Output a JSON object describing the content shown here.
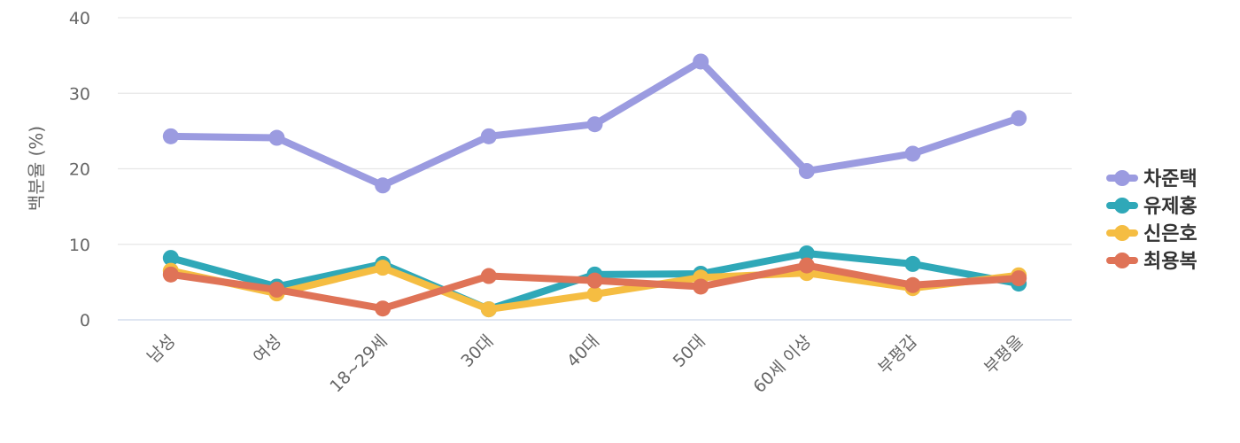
{
  "chart_data": {
    "type": "line",
    "categories": [
      "남성",
      "여성",
      "18~29세",
      "30대",
      "40대",
      "50대",
      "60세 이상",
      "부평갑",
      "부평을"
    ],
    "series": [
      {
        "name": "차준택",
        "color": "#9b9be0",
        "values": [
          24.3,
          24.1,
          17.8,
          24.3,
          25.9,
          34.2,
          19.7,
          22.0,
          26.7
        ]
      },
      {
        "name": "유제홍",
        "color": "#2fa8b8",
        "values": [
          8.2,
          4.4,
          7.4,
          1.4,
          6.0,
          6.1,
          8.8,
          7.4,
          4.8
        ]
      },
      {
        "name": "신은호",
        "color": "#f5bd42",
        "values": [
          6.5,
          3.5,
          6.9,
          1.4,
          3.4,
          5.6,
          6.2,
          4.2,
          5.9
        ]
      },
      {
        "name": "최용복",
        "color": "#df7357",
        "values": [
          6.0,
          4.0,
          1.5,
          5.8,
          5.2,
          4.4,
          7.2,
          4.6,
          5.5
        ]
      }
    ],
    "yticks": [
      "0",
      "10",
      "20",
      "30",
      "40"
    ],
    "ylim": [
      0,
      40
    ],
    "ylabel": "백분율 (%)",
    "xlabel": "",
    "grid": "horizontal",
    "legend_position": "right"
  }
}
